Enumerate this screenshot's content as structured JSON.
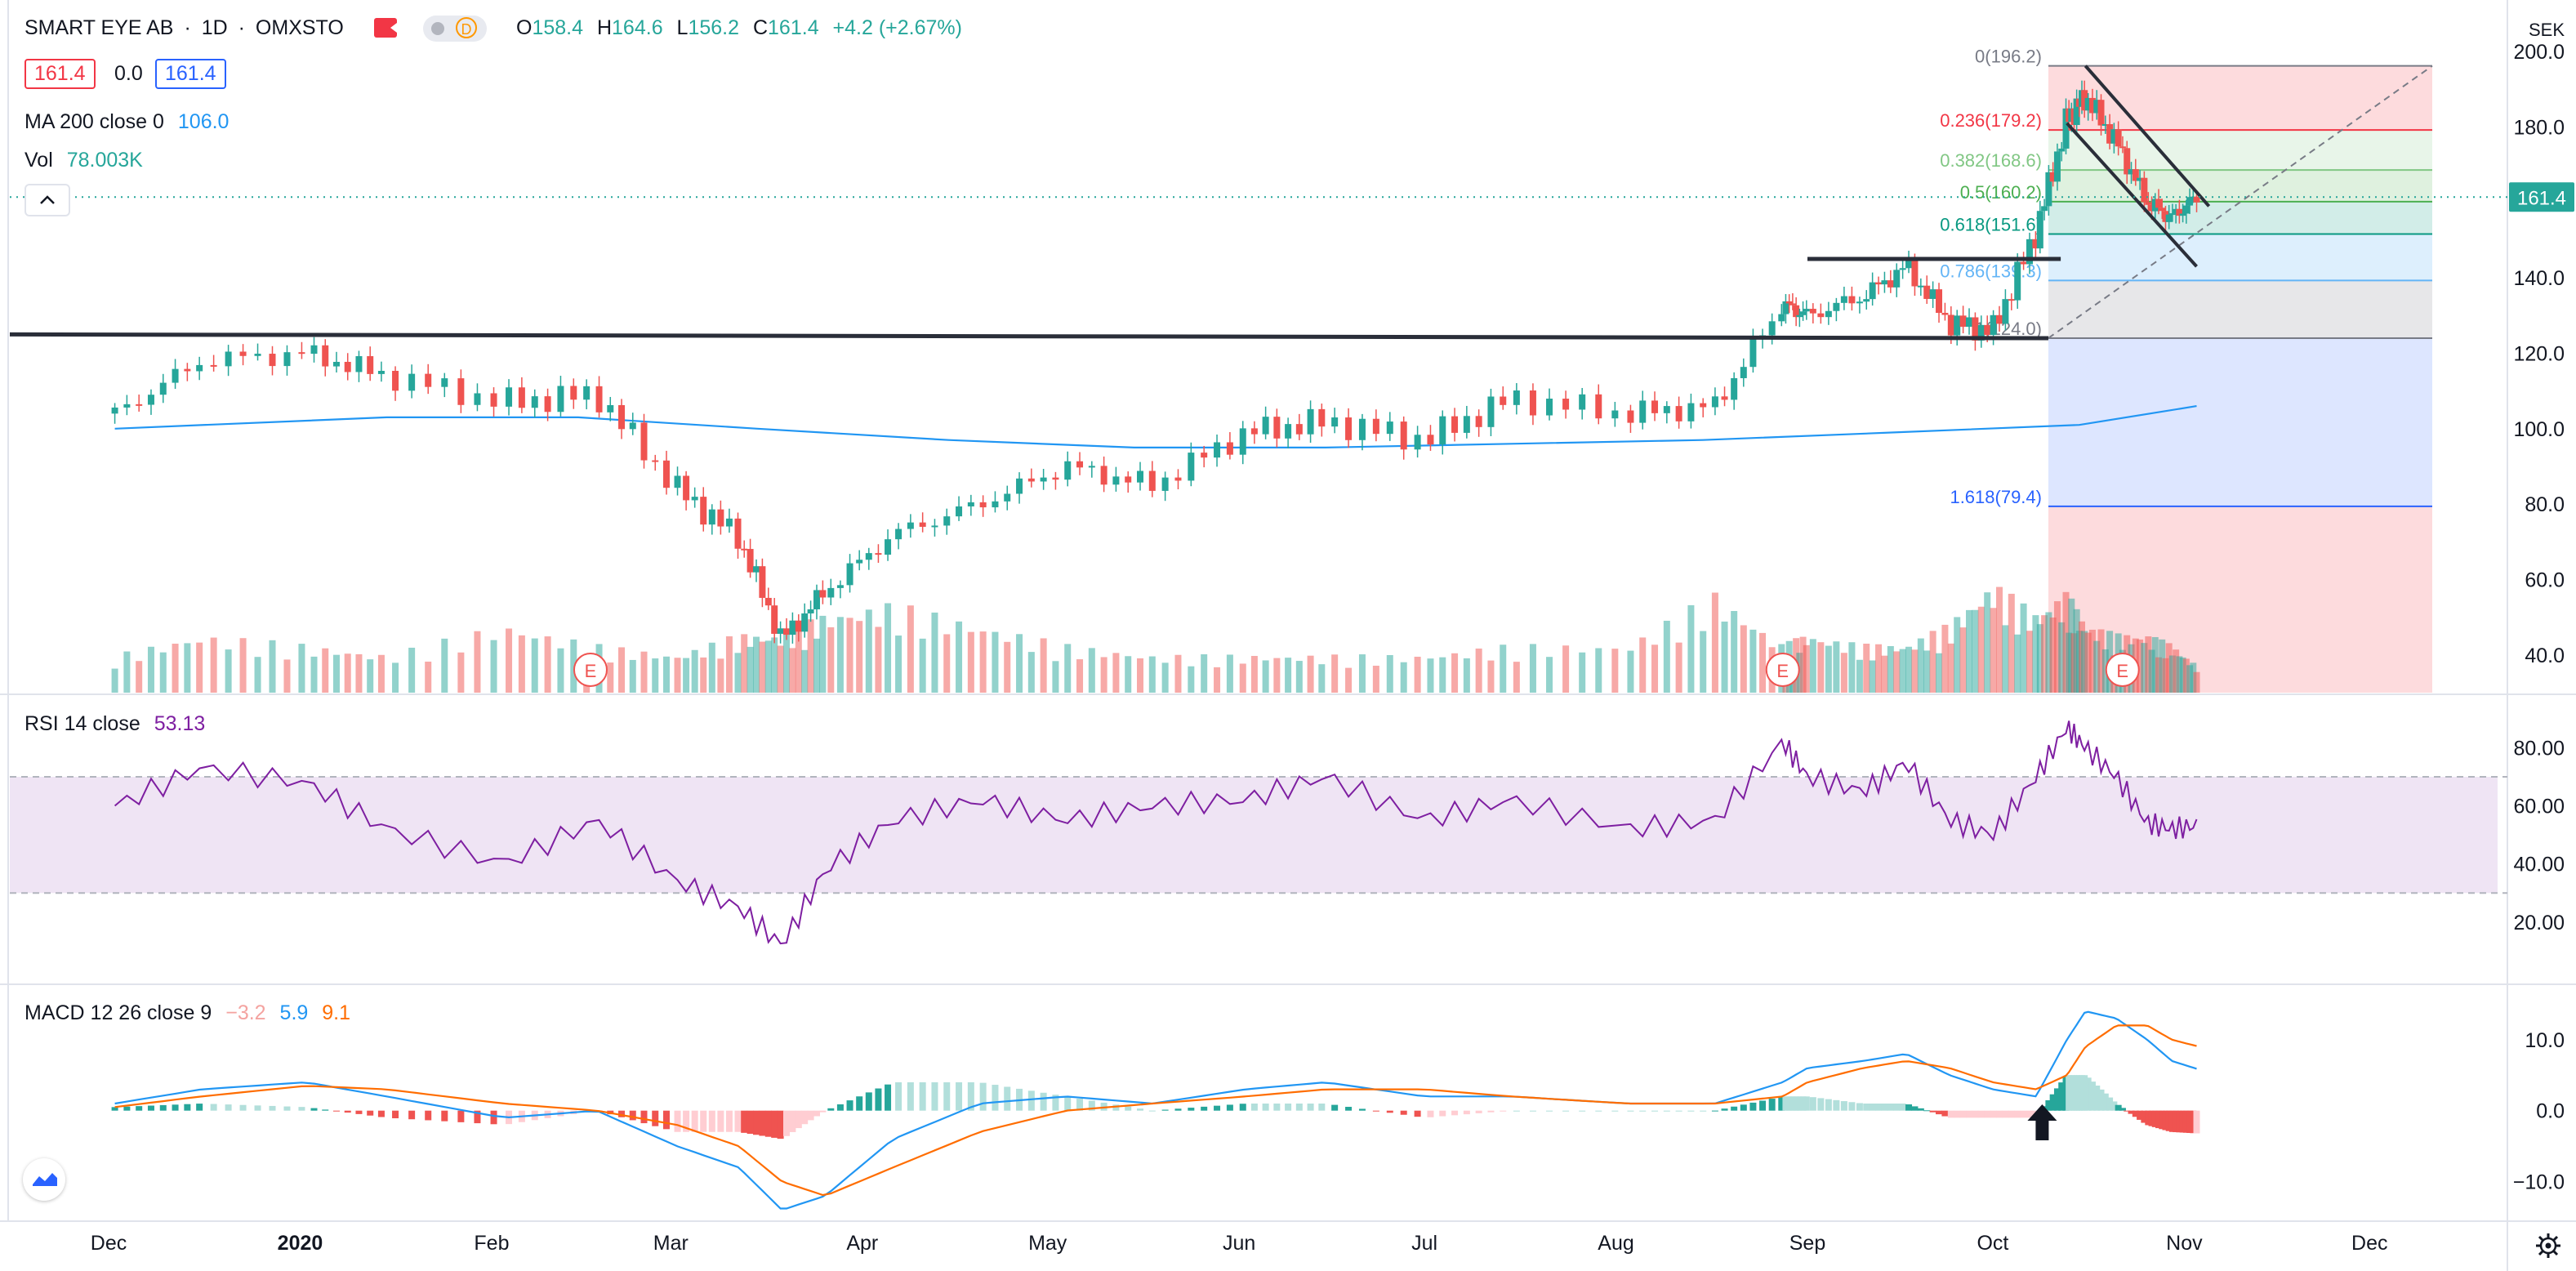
{
  "header": {
    "symbol": "SMART EYE AB",
    "interval": "1D",
    "exchange": "OMXSTO",
    "ohlc": {
      "o_label": "O",
      "o": "158.4",
      "h_label": "H",
      "h": "164.6",
      "l_label": "L",
      "l": "156.2",
      "c_label": "C",
      "c": "161.4",
      "change": "+4.2 (+2.67%)"
    },
    "sell_price": "161.4",
    "spread": "0.0",
    "buy_price": "161.4",
    "data_badge": "D"
  },
  "indicators": {
    "ma_label": "MA 200 close 0",
    "ma_value": "106.0",
    "vol_label": "Vol",
    "vol_value": "78.003K",
    "rsi_label": "RSI 14 close",
    "rsi_value": "53.13",
    "macd_label": "MACD 12 26 close 9",
    "macd_hist": "−3.2",
    "macd_line": "5.9",
    "macd_signal": "9.1"
  },
  "price_axis": {
    "currency": "SEK",
    "ticks": [
      "200.0",
      "180.0",
      "160.0",
      "140.0",
      "120.0",
      "100.0",
      "80.0",
      "60.0",
      "40.0"
    ],
    "last_price": "161.4"
  },
  "rsi_axis": {
    "ticks": [
      "80.00",
      "60.00",
      "40.00",
      "20.00"
    ]
  },
  "macd_axis": {
    "ticks": [
      "10.0",
      "0.0",
      "−10.0"
    ]
  },
  "time_axis": [
    "Dec",
    "2020",
    "Feb",
    "Mar",
    "Apr",
    "May",
    "Jun",
    "Jul",
    "Aug",
    "Sep",
    "Oct",
    "Nov",
    "Dec"
  ],
  "fibonacci": [
    {
      "label": "0(196.2)",
      "level": 196.2,
      "color": "#787b86"
    },
    {
      "label": "0.236(179.2)",
      "level": 179.2,
      "color": "#f23645"
    },
    {
      "label": "0.382(168.6)",
      "level": 168.6,
      "color": "#81c784"
    },
    {
      "label": "0.5(160.2)",
      "level": 160.2,
      "color": "#4caf50"
    },
    {
      "label": "0.618(151.6)",
      "level": 151.6,
      "color": "#089981"
    },
    {
      "label": "0.786(139.3)",
      "level": 139.3,
      "color": "#64b5f6"
    },
    {
      "label": "1(124.0)",
      "level": 124.0,
      "color": "#787b86"
    },
    {
      "label": "1.618(79.4)",
      "level": 79.4,
      "color": "#2962ff"
    }
  ],
  "earnings_marker": "E",
  "colors": {
    "up": "#26a69a",
    "down": "#ef5350",
    "ma": "#2196f3",
    "rsi": "#7e1fa1",
    "macd": "#2196f3",
    "signal": "#ff6d00",
    "trendline": "#2a2e39"
  },
  "icons": [
    "collapse-chevron-up-icon",
    "tradingview-logo-icon",
    "settings-gear-icon",
    "earnings-marker-icon",
    "arrow-up-annotation-icon"
  ],
  "chart_data": [
    {
      "type": "candlestick",
      "x": [
        "2019-12-02",
        "2019-12-16",
        "2020-01-02",
        "2020-01-15",
        "2020-02-03",
        "2020-02-18",
        "2020-03-02",
        "2020-03-12",
        "2020-03-19",
        "2020-03-26",
        "2020-04-06",
        "2020-04-20",
        "2020-05-04",
        "2020-05-18",
        "2020-06-02",
        "2020-06-15",
        "2020-07-01",
        "2020-07-15",
        "2020-08-03",
        "2020-08-17",
        "2020-08-28",
        "2020-09-01",
        "2020-09-10",
        "2020-09-17",
        "2020-09-24",
        "2020-10-01",
        "2020-10-08",
        "2020-10-13",
        "2020-10-16",
        "2020-10-21",
        "2020-10-26",
        "2020-10-30",
        "2020-11-03"
      ],
      "close": [
        104,
        118,
        120,
        114,
        107,
        109,
        84,
        71,
        44,
        57,
        72,
        80,
        90,
        85,
        99,
        102,
        97,
        108,
        104,
        106,
        133,
        130,
        135,
        143,
        128,
        126,
        152,
        182,
        188,
        176,
        160,
        156,
        161.4
      ],
      "ylim": [
        30,
        205
      ],
      "annotations": {
        "support_level": 124,
        "resistance_level": 145
      }
    },
    {
      "type": "line",
      "name": "MA 200 close 0",
      "x": [
        "2019-12-02",
        "2020-01-15",
        "2020-02-15",
        "2020-03-15",
        "2020-04-15",
        "2020-05-15",
        "2020-06-15",
        "2020-07-15",
        "2020-08-15",
        "2020-09-15",
        "2020-10-15",
        "2020-11-03"
      ],
      "values": [
        100,
        103,
        103,
        100,
        97,
        95,
        95,
        96,
        97,
        99,
        101,
        106
      ]
    },
    {
      "type": "bar",
      "name": "Vol",
      "values_relative": [
        0.3,
        0.5,
        0.4,
        0.3,
        0.6,
        0.4,
        0.3,
        0.5,
        0.5,
        0.7,
        0.8,
        0.6,
        0.4,
        0.3,
        0.3,
        0.3,
        0.3,
        0.4,
        0.4,
        0.9,
        0.4,
        0.5,
        0.4,
        0.4,
        0.6,
        1.0,
        0.7,
        0.9,
        0.6,
        0.5,
        0.5,
        0.4,
        0.2
      ]
    },
    {
      "type": "line",
      "name": "RSI 14 close",
      "x": [
        "2019-12-02",
        "2019-12-16",
        "2020-01-02",
        "2020-01-15",
        "2020-02-03",
        "2020-02-18",
        "2020-03-02",
        "2020-03-12",
        "2020-03-19",
        "2020-03-26",
        "2020-04-06",
        "2020-04-20",
        "2020-05-04",
        "2020-05-18",
        "2020-06-02",
        "2020-06-15",
        "2020-07-01",
        "2020-07-15",
        "2020-08-03",
        "2020-08-17",
        "2020-08-28",
        "2020-09-01",
        "2020-09-10",
        "2020-09-17",
        "2020-09-24",
        "2020-10-01",
        "2020-10-08",
        "2020-10-13",
        "2020-10-16",
        "2020-10-21",
        "2020-10-26",
        "2020-10-30",
        "2020-11-03"
      ],
      "values": [
        60,
        73,
        68,
        52,
        40,
        55,
        34,
        25,
        12,
        38,
        55,
        62,
        55,
        60,
        62,
        70,
        55,
        62,
        52,
        55,
        82,
        70,
        65,
        75,
        55,
        50,
        70,
        87,
        80,
        70,
        54,
        52,
        53.13
      ],
      "ylim": [
        0,
        95
      ],
      "band": [
        30,
        70
      ]
    },
    {
      "type": "line",
      "name": "MACD 12 26 close 9",
      "x": [
        "2019-12-02",
        "2019-12-16",
        "2020-01-02",
        "2020-01-15",
        "2020-02-03",
        "2020-02-18",
        "2020-03-02",
        "2020-03-12",
        "2020-03-19",
        "2020-03-26",
        "2020-04-06",
        "2020-04-20",
        "2020-05-04",
        "2020-05-18",
        "2020-06-02",
        "2020-06-15",
        "2020-07-01",
        "2020-07-15",
        "2020-08-03",
        "2020-08-17",
        "2020-08-28",
        "2020-09-01",
        "2020-09-10",
        "2020-09-17",
        "2020-09-24",
        "2020-10-01",
        "2020-10-08",
        "2020-10-13",
        "2020-10-16",
        "2020-10-21",
        "2020-10-26",
        "2020-10-30",
        "2020-11-03"
      ],
      "series": [
        {
          "name": "MACD",
          "values": [
            1,
            3,
            4,
            2,
            -1,
            0,
            -5,
            -8,
            -14,
            -12,
            -4,
            1,
            2,
            1,
            3,
            4,
            2,
            2,
            1,
            1,
            4,
            6,
            7,
            8,
            5,
            3,
            2,
            10,
            14,
            13,
            10,
            7,
            5.9
          ]
        },
        {
          "name": "Signal",
          "values": [
            0.5,
            2,
            3.5,
            3,
            1,
            0,
            -2,
            -5,
            -10,
            -12,
            -8,
            -3,
            0,
            1,
            2,
            3,
            3,
            2,
            1,
            1,
            2,
            4,
            6,
            7,
            6,
            4,
            3,
            5,
            9,
            12,
            12,
            10,
            9.1
          ]
        },
        {
          "name": "Histogram",
          "values": [
            0.5,
            1,
            0.5,
            -1,
            -2,
            0,
            -3,
            -3,
            -4,
            0,
            4,
            4,
            2,
            0,
            1,
            1,
            -1,
            0,
            0,
            0,
            2,
            2,
            1,
            1,
            -1,
            -1,
            -1,
            5,
            5,
            1,
            -2,
            -3,
            -3.2
          ]
        }
      ],
      "ylim": [
        -15,
        17
      ]
    }
  ]
}
